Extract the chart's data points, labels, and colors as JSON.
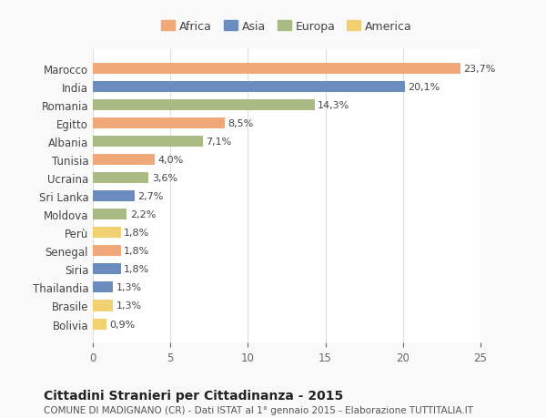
{
  "categories": [
    "Marocco",
    "India",
    "Romania",
    "Egitto",
    "Albania",
    "Tunisia",
    "Ucraina",
    "Sri Lanka",
    "Moldova",
    "Perù",
    "Senegal",
    "Siria",
    "Thailandia",
    "Brasile",
    "Bolivia"
  ],
  "values": [
    23.7,
    20.1,
    14.3,
    8.5,
    7.1,
    4.0,
    3.6,
    2.7,
    2.2,
    1.8,
    1.8,
    1.8,
    1.3,
    1.3,
    0.9
  ],
  "labels": [
    "23,7%",
    "20,1%",
    "14,3%",
    "8,5%",
    "7,1%",
    "4,0%",
    "3,6%",
    "2,7%",
    "2,2%",
    "1,8%",
    "1,8%",
    "1,8%",
    "1,3%",
    "1,3%",
    "0,9%"
  ],
  "continents": [
    "Africa",
    "Asia",
    "Europa",
    "Africa",
    "Europa",
    "Africa",
    "Europa",
    "Asia",
    "Europa",
    "America",
    "Africa",
    "Asia",
    "Asia",
    "America",
    "America"
  ],
  "continent_colors": {
    "Africa": "#F0A878",
    "Asia": "#6B8CBE",
    "Europa": "#A8BB82",
    "America": "#F0D070"
  },
  "legend_order": [
    "Africa",
    "Asia",
    "Europa",
    "America"
  ],
  "title": "Cittadini Stranieri per Cittadinanza - 2015",
  "subtitle": "COMUNE DI MADIGNANO (CR) - Dati ISTAT al 1° gennaio 2015 - Elaborazione TUTTITALIA.IT",
  "xlim": [
    0,
    25
  ],
  "xticks": [
    0,
    5,
    10,
    15,
    20,
    25
  ],
  "background_color": "#f9f9f9",
  "bar_background": "#ffffff",
  "grid_color": "#dddddd"
}
